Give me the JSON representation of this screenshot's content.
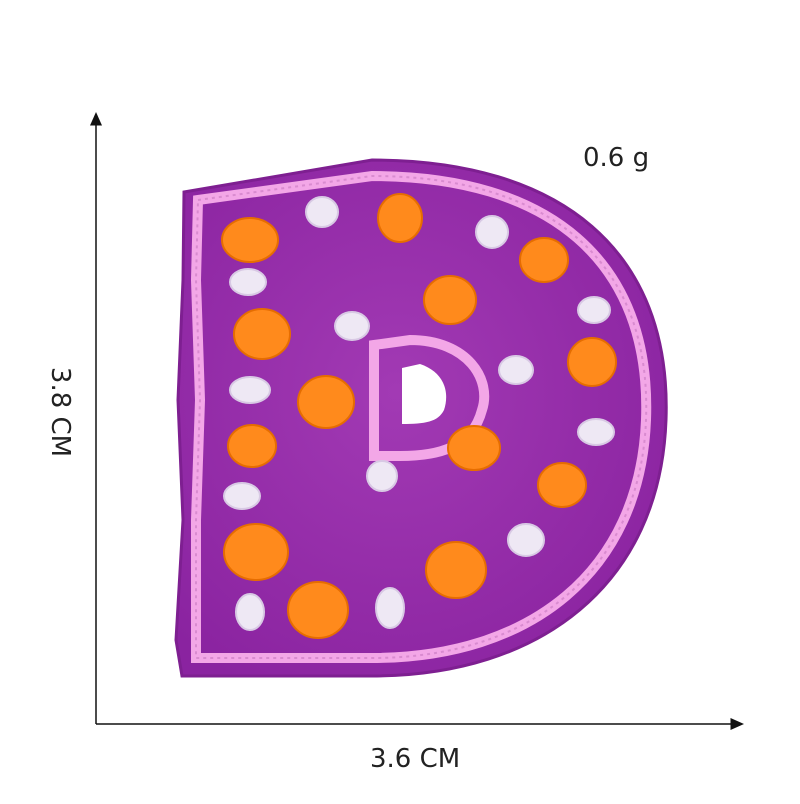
{
  "labels": {
    "weight": "0.6 g",
    "height": "3.8 CM",
    "width": "3.6 CM"
  },
  "colors": {
    "background": "#ffffff",
    "felt": "#9b2fae",
    "felt_dark": "#7e1f91",
    "border_stitch": "#f2a6e6",
    "orange_dots": "#ff8a1c",
    "white_dots": "#eee8f4",
    "axis": "#111111"
  },
  "image": {
    "subject": "purple embroidered letter patch",
    "letter": "D",
    "inner_letter": "D"
  }
}
